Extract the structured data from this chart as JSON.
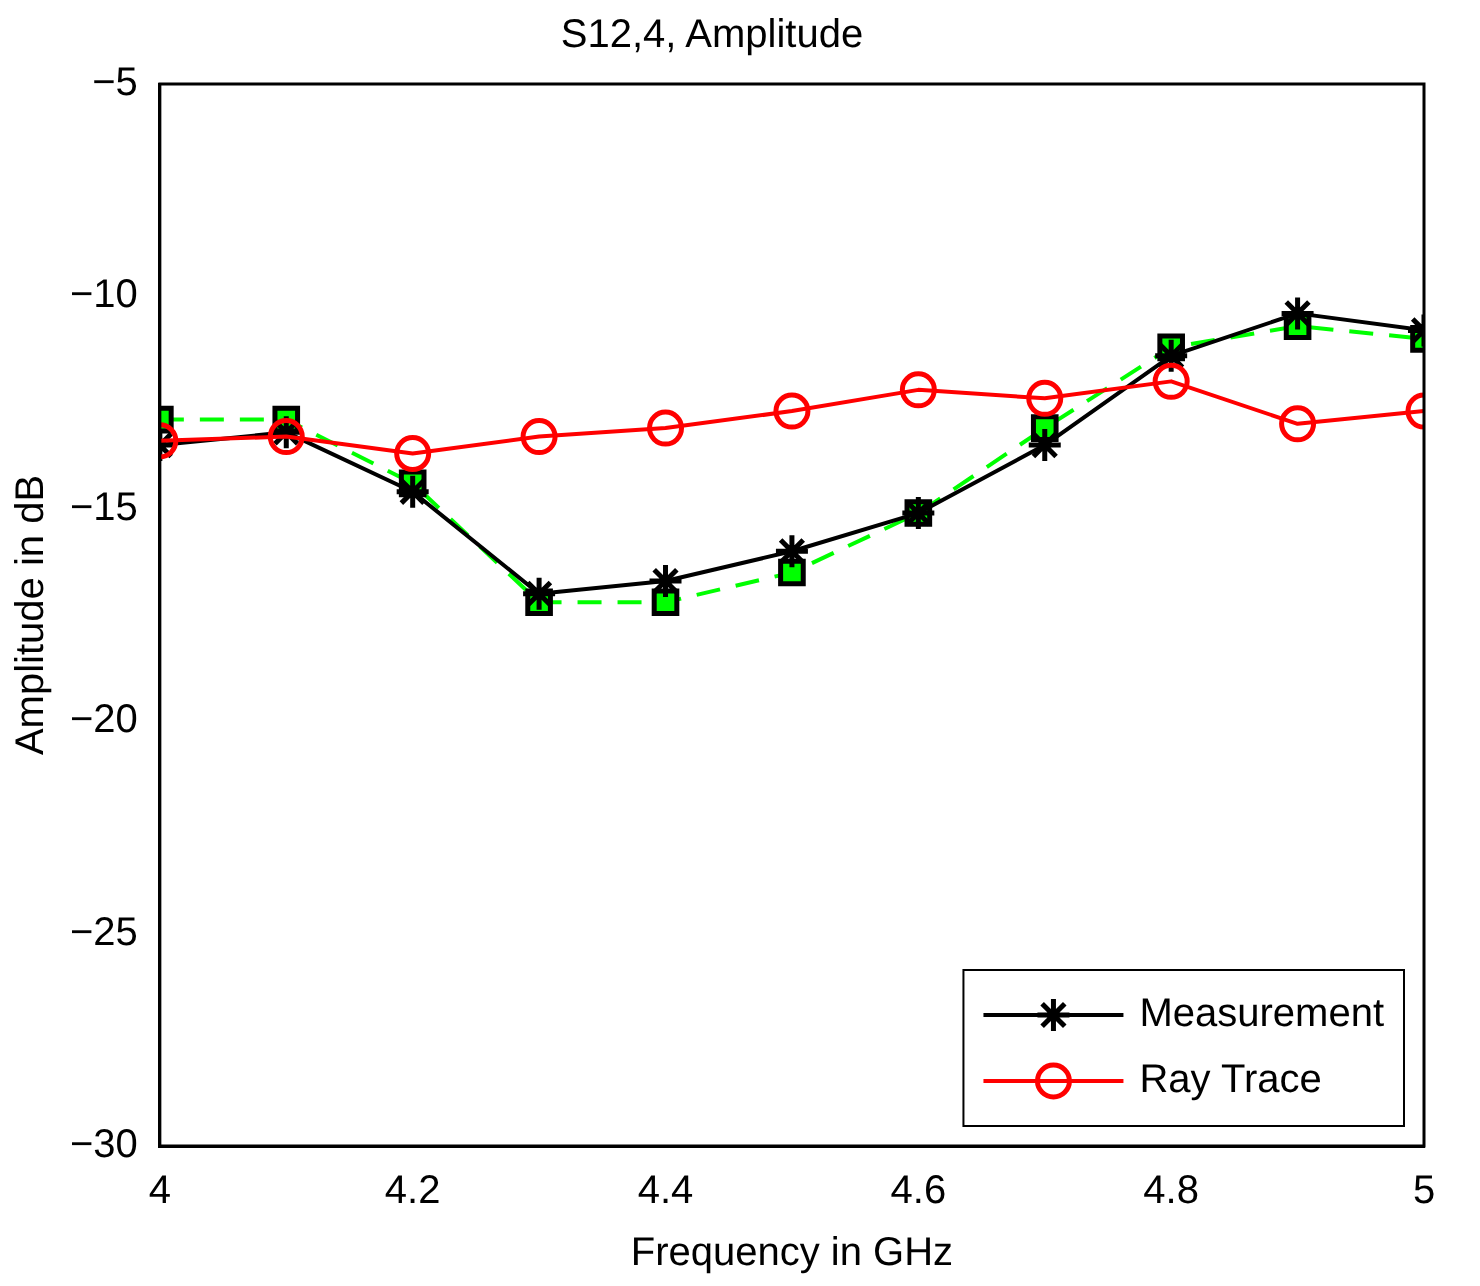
{
  "chart_data": {
    "type": "line",
    "title": "S12,4, Amplitude",
    "xlabel": "Frequency in GHz",
    "ylabel": "Amplitude in dB",
    "x": [
      4,
      4.1,
      4.2,
      4.3,
      4.4,
      4.5,
      4.6,
      4.7,
      4.8,
      4.9,
      5
    ],
    "series": [
      {
        "color": "#00ff00",
        "marker": "square",
        "line_style": "dashed",
        "values": [
          -12.9,
          -12.9,
          -14.4,
          -17.2,
          -17.2,
          -16.5,
          -15.1,
          -13.1,
          -11.2,
          -10.7,
          -11.0
        ]
      },
      {
        "name": "Measurement",
        "color": "#000000",
        "marker": "cross",
        "line_style": "solid",
        "values": [
          -13.5,
          -13.2,
          -14.6,
          -17.0,
          -16.7,
          -16.0,
          -15.1,
          -13.5,
          -11.4,
          -10.4,
          -10.8
        ]
      },
      {
        "name": "Ray Trace",
        "color": "#ff0000",
        "marker": "circle",
        "line_style": "solid",
        "values": [
          -13.4,
          -13.3,
          -13.7,
          -13.3,
          -13.1,
          -12.7,
          -12.2,
          -12.4,
          -12.0,
          -13.0,
          -12.7
        ]
      }
    ],
    "xlim": [
      4,
      5
    ],
    "xticks": [
      4,
      4.2,
      4.4,
      4.6,
      4.8,
      5
    ],
    "ylim": [
      -30,
      -5
    ],
    "yticks": [
      -30,
      -25,
      -20,
      -15,
      -10,
      -5
    ],
    "grid": false,
    "legend": "bottom right"
  }
}
